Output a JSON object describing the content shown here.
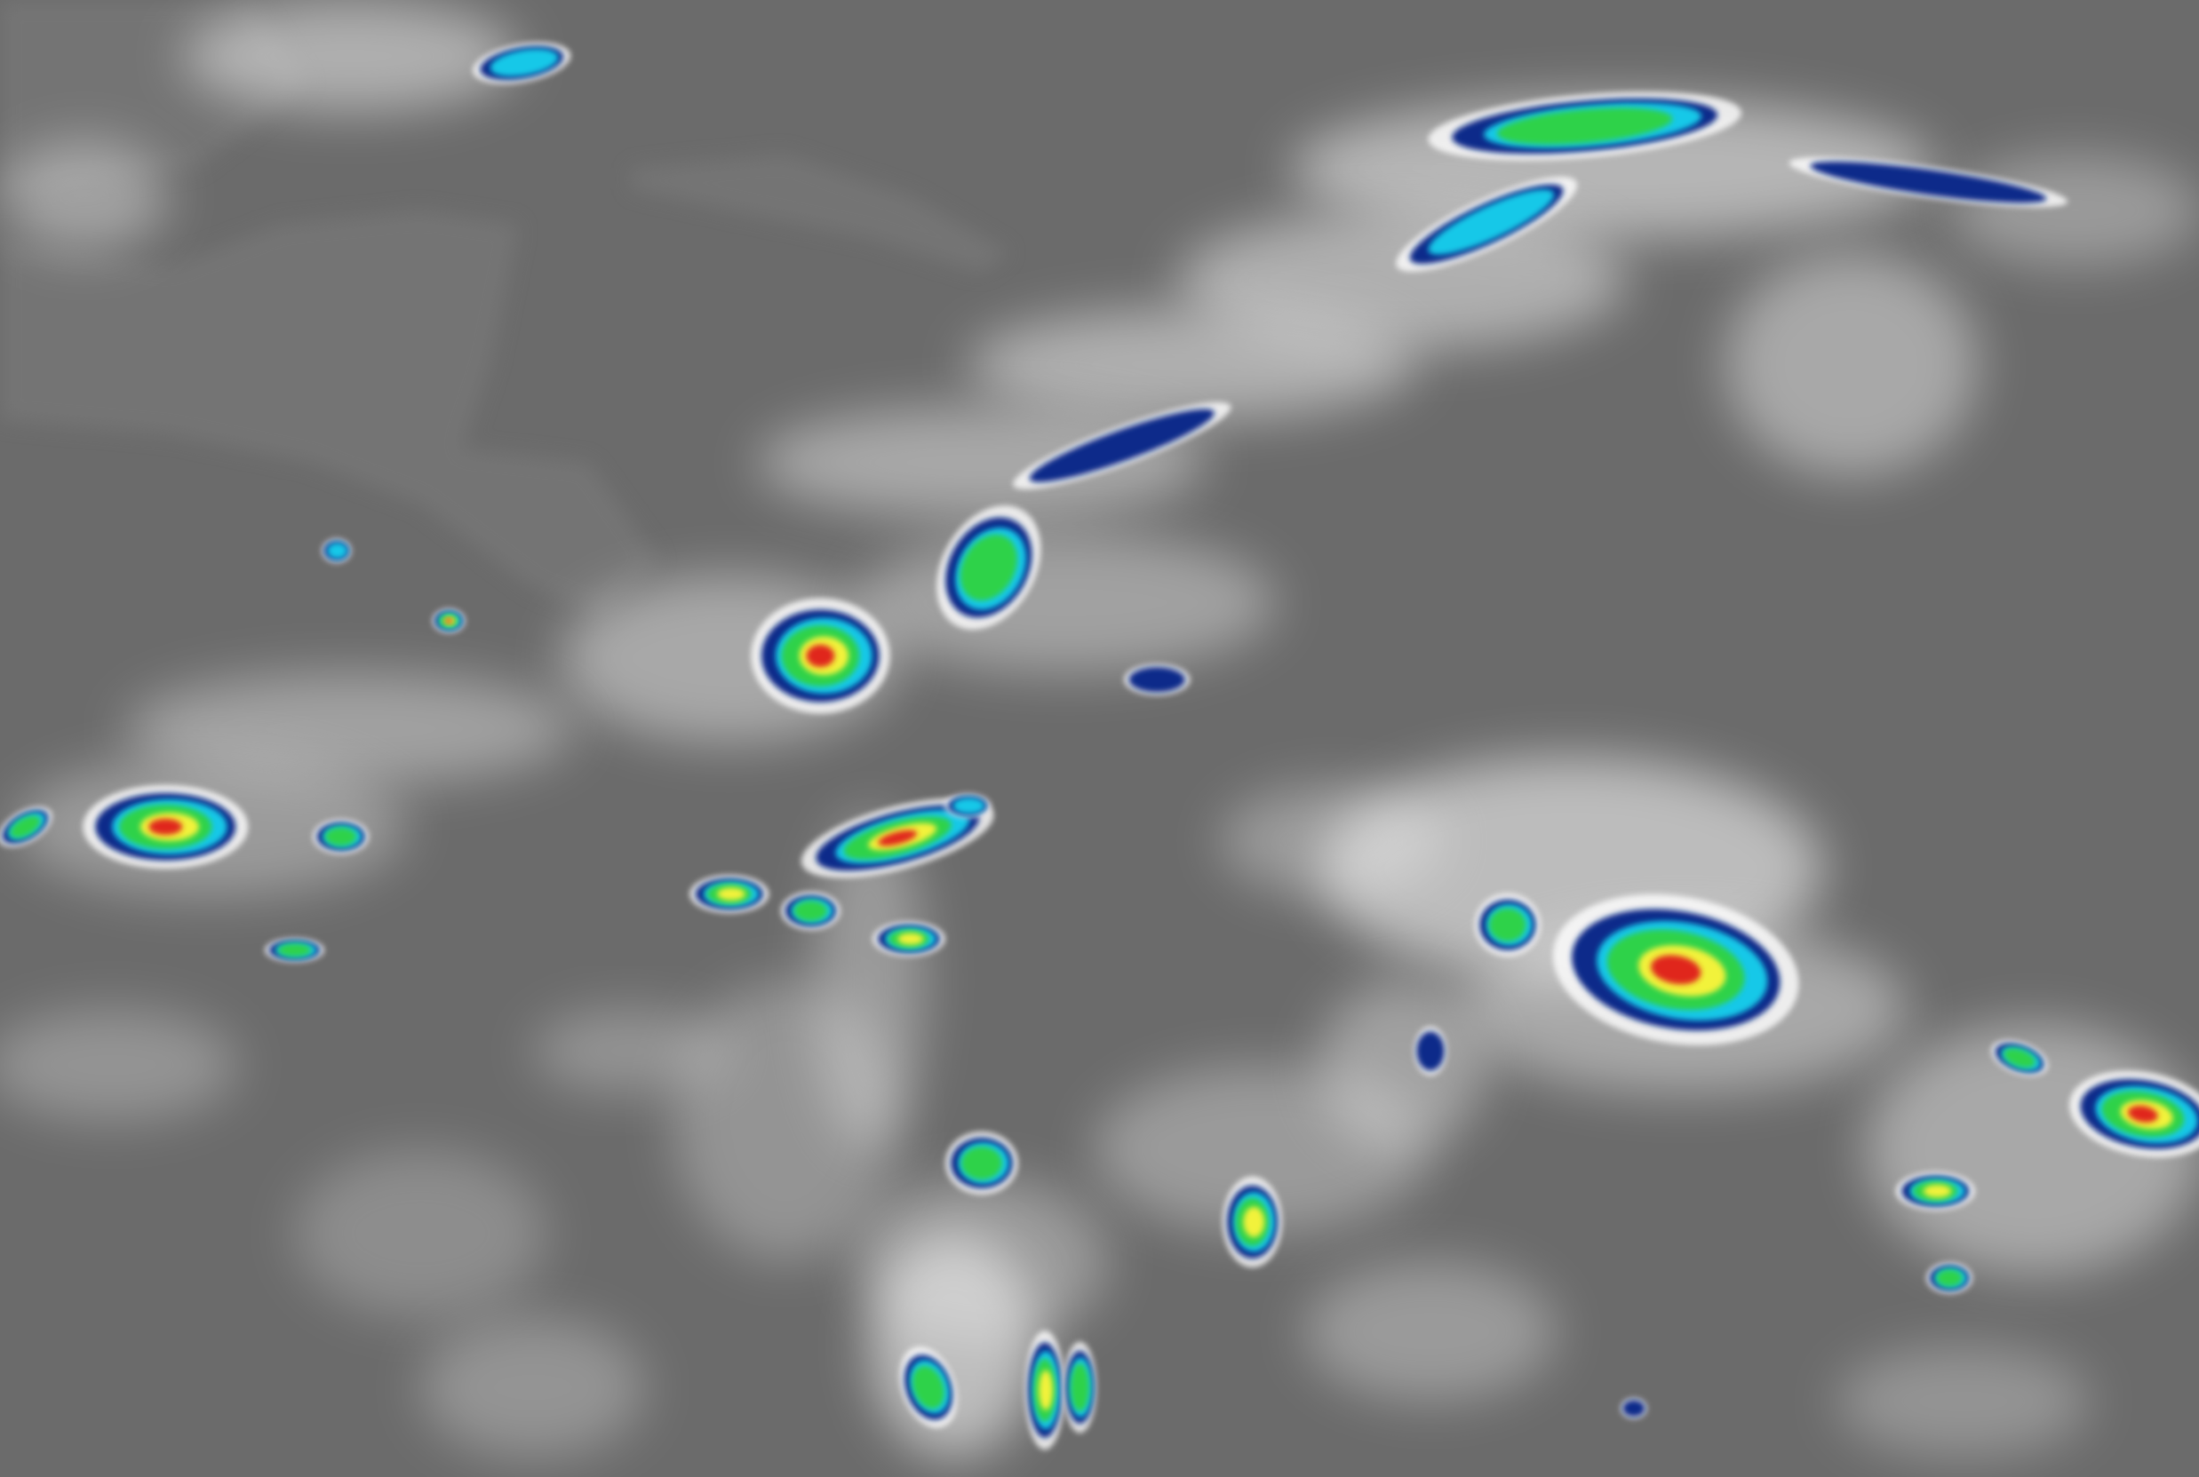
{
  "image": {
    "kind": "infrared satellite imagery",
    "palette": {
      "ocean_background": "#6b6b6b",
      "land": "#7d7d7d",
      "cloud": "#f2f2f2",
      "cold_top_navy": "#0b2a8a",
      "cold_top_cyan": "#19c8e8",
      "cold_top_green": "#2fd24a",
      "cold_top_yellow": "#f2f23a",
      "cold_top_red": "#e0281e"
    }
  }
}
